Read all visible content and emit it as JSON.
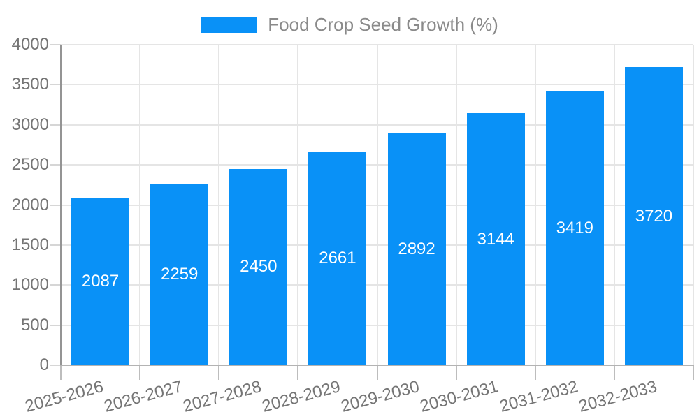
{
  "chart_data": {
    "type": "bar",
    "title": "Food Crop Seed Growth (%)",
    "legend_entries": [
      "Food Crop Seed Growth (%)"
    ],
    "legend_position": "top",
    "categories": [
      "2025-2026",
      "2026-2027",
      "2027-2028",
      "2028-2029",
      "2029-2030",
      "2030-2031",
      "2031-2032",
      "2032-2033"
    ],
    "values": [
      2087,
      2259,
      2450,
      2661,
      2892,
      3144,
      3419,
      3720
    ],
    "value_labels": [
      "2087",
      "2259",
      "2450",
      "2661",
      "2892",
      "3144",
      "3419",
      "3720"
    ],
    "xlabel": "",
    "ylabel": "",
    "ylim": [
      0,
      4000
    ],
    "yticks": [
      0,
      500,
      1000,
      1500,
      2000,
      2500,
      3000,
      3500,
      4000
    ],
    "grid": true,
    "x_label_rotation_deg": -15,
    "colors": {
      "bar": "#0991F7",
      "value_label": "#ffffff",
      "axis_label": "#757575",
      "legend_text": "#8a8a8a",
      "grid_line": "#e5e5e5",
      "y_axis_line": "#949494",
      "x_axis_line": "#b3b3b3"
    }
  }
}
